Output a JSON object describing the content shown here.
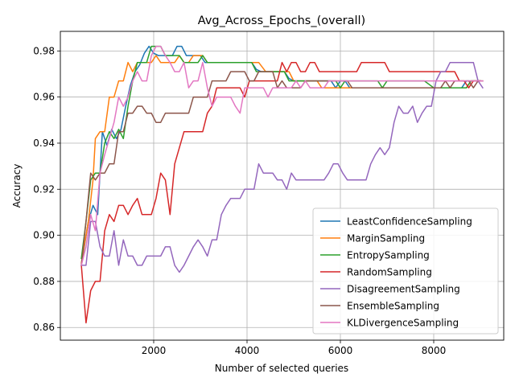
{
  "chart_data": {
    "type": "line",
    "title": "Avg_Across_Epochs_(overall)",
    "xlabel": "Number of selected queries",
    "ylabel": "Accuracy",
    "xlim": [
      0,
      9500
    ],
    "ylim": [
      0.8545,
      0.9885
    ],
    "xticks": [
      2000,
      4000,
      6000,
      8000
    ],
    "xtick_labels": [
      "2000",
      "4000",
      "6000",
      "8000"
    ],
    "yticks": [
      0.86,
      0.88,
      0.9,
      0.92,
      0.94,
      0.96,
      0.98
    ],
    "ytick_labels": [
      "0.86",
      "0.88",
      "0.90",
      "0.92",
      "0.94",
      "0.96",
      "0.98"
    ],
    "grid": true,
    "legend_position": "lower-right",
    "series": [
      {
        "name": "LeastConfidenceSampling",
        "color": "#1f77b4",
        "x": [
          450,
          600,
          700,
          800,
          900,
          1000,
          1100,
          1200,
          1300,
          1400,
          1500,
          1600,
          1700,
          1800,
          1900,
          2000,
          2100,
          2200,
          2300,
          2400,
          2500,
          2600,
          2700,
          2800,
          2900,
          3000,
          3100,
          3200,
          3300,
          3500,
          3700,
          3900,
          4100,
          4200,
          4300,
          4500,
          4700,
          4800,
          4900,
          5000,
          5200,
          5400,
          5600,
          5800,
          5900,
          6000,
          6100,
          6200,
          6400,
          6600,
          6800,
          7000,
          7200,
          7400,
          7600,
          7800,
          8000,
          8200,
          8400,
          8500,
          8600,
          8700,
          8800,
          9000
        ],
        "values": [
          0.887,
          0.906,
          0.913,
          0.909,
          0.945,
          0.939,
          0.946,
          0.942,
          0.946,
          0.956,
          0.965,
          0.971,
          0.974,
          0.979,
          0.982,
          0.979,
          0.978,
          0.978,
          0.978,
          0.978,
          0.982,
          0.982,
          0.978,
          0.978,
          0.978,
          0.978,
          0.975,
          0.975,
          0.975,
          0.975,
          0.975,
          0.975,
          0.975,
          0.972,
          0.971,
          0.971,
          0.971,
          0.971,
          0.968,
          0.967,
          0.967,
          0.967,
          0.967,
          0.967,
          0.964,
          0.967,
          0.967,
          0.964,
          0.964,
          0.964,
          0.964,
          0.964,
          0.964,
          0.964,
          0.964,
          0.964,
          0.964,
          0.964,
          0.964,
          0.964,
          0.964,
          0.967,
          0.967,
          0.967
        ]
      },
      {
        "name": "MarginSampling",
        "color": "#ff7f0e",
        "x": [
          450,
          600,
          700,
          750,
          850,
          950,
          1050,
          1150,
          1250,
          1350,
          1450,
          1550,
          1650,
          1750,
          1850,
          1950,
          2050,
          2150,
          2250,
          2350,
          2450,
          2550,
          2650,
          2750,
          2850,
          2950,
          3050,
          3150,
          3300,
          3500,
          3700,
          3900,
          4100,
          4250,
          4400,
          4600,
          4800,
          4900,
          5000,
          5200,
          5400,
          5500,
          5600,
          5800,
          6000,
          6200,
          6400,
          6600,
          6800,
          7000,
          7200,
          7400,
          7600,
          7800,
          8000,
          8200,
          8400,
          8600,
          8700,
          8800,
          9000
        ],
        "values": [
          0.888,
          0.906,
          0.924,
          0.942,
          0.945,
          0.945,
          0.96,
          0.96,
          0.967,
          0.967,
          0.975,
          0.971,
          0.975,
          0.975,
          0.975,
          0.975,
          0.978,
          0.975,
          0.975,
          0.975,
          0.975,
          0.978,
          0.975,
          0.975,
          0.978,
          0.978,
          0.978,
          0.975,
          0.975,
          0.975,
          0.975,
          0.975,
          0.975,
          0.975,
          0.971,
          0.971,
          0.971,
          0.971,
          0.967,
          0.967,
          0.967,
          0.967,
          0.964,
          0.964,
          0.964,
          0.964,
          0.964,
          0.964,
          0.964,
          0.964,
          0.964,
          0.964,
          0.964,
          0.964,
          0.964,
          0.964,
          0.964,
          0.964,
          0.964,
          0.967,
          0.967
        ]
      },
      {
        "name": "EntropySampling",
        "color": "#2ca02c",
        "x": [
          450,
          550,
          650,
          750,
          850,
          950,
          1050,
          1150,
          1250,
          1350,
          1450,
          1550,
          1650,
          1750,
          1850,
          1950,
          2050,
          2150,
          2250,
          2350,
          2450,
          2550,
          2650,
          2750,
          2850,
          2950,
          3050,
          3150,
          3300,
          3500,
          3700,
          3900,
          4100,
          4200,
          4300,
          4500,
          4700,
          4800,
          4900,
          5000,
          5200,
          5400,
          5600,
          5800,
          5900,
          6000,
          6100,
          6200,
          6400,
          6600,
          6800,
          6900,
          7000,
          7200,
          7400,
          7600,
          7800,
          8000,
          8200,
          8400,
          8600,
          8700,
          8800,
          9000
        ],
        "values": [
          0.89,
          0.906,
          0.924,
          0.927,
          0.927,
          0.94,
          0.945,
          0.942,
          0.946,
          0.942,
          0.956,
          0.967,
          0.975,
          0.975,
          0.975,
          0.982,
          0.982,
          0.982,
          0.978,
          0.978,
          0.978,
          0.978,
          0.975,
          0.975,
          0.975,
          0.975,
          0.978,
          0.975,
          0.975,
          0.975,
          0.975,
          0.975,
          0.975,
          0.971,
          0.971,
          0.971,
          0.971,
          0.971,
          0.967,
          0.967,
          0.967,
          0.967,
          0.967,
          0.967,
          0.967,
          0.964,
          0.967,
          0.967,
          0.967,
          0.967,
          0.967,
          0.964,
          0.967,
          0.967,
          0.967,
          0.967,
          0.967,
          0.964,
          0.964,
          0.964,
          0.964,
          0.964,
          0.967,
          0.967
        ]
      },
      {
        "name": "RandomSampling",
        "color": "#d62728",
        "x": [
          450,
          550,
          650,
          750,
          850,
          950,
          1050,
          1150,
          1250,
          1350,
          1450,
          1550,
          1650,
          1750,
          1850,
          1950,
          2050,
          2150,
          2250,
          2350,
          2450,
          2550,
          2650,
          2750,
          2850,
          2950,
          3050,
          3150,
          3250,
          3350,
          3450,
          3550,
          3650,
          3750,
          3850,
          3950,
          4050,
          4150,
          4250,
          4350,
          4450,
          4550,
          4650,
          4750,
          4850,
          4950,
          5050,
          5150,
          5250,
          5350,
          5450,
          5550,
          5650,
          5750,
          5850,
          5950,
          6050,
          6150,
          6250,
          6350,
          6450,
          6550,
          6650,
          6750,
          6850,
          6950,
          7050,
          7150,
          7250,
          7350,
          7450,
          7550,
          7650,
          7750,
          7850,
          7950,
          8050,
          8150,
          8250,
          8350,
          8450,
          8550,
          8650,
          8750,
          8850,
          9000
        ],
        "values": [
          0.887,
          0.862,
          0.876,
          0.88,
          0.88,
          0.902,
          0.909,
          0.906,
          0.913,
          0.913,
          0.909,
          0.913,
          0.916,
          0.909,
          0.909,
          0.909,
          0.916,
          0.927,
          0.924,
          0.909,
          0.931,
          0.938,
          0.945,
          0.945,
          0.945,
          0.945,
          0.945,
          0.953,
          0.956,
          0.964,
          0.964,
          0.964,
          0.964,
          0.964,
          0.964,
          0.96,
          0.967,
          0.967,
          0.967,
          0.967,
          0.967,
          0.967,
          0.967,
          0.975,
          0.971,
          0.975,
          0.975,
          0.971,
          0.971,
          0.975,
          0.975,
          0.971,
          0.971,
          0.971,
          0.971,
          0.971,
          0.971,
          0.971,
          0.971,
          0.971,
          0.975,
          0.975,
          0.975,
          0.975,
          0.975,
          0.975,
          0.971,
          0.971,
          0.971,
          0.971,
          0.971,
          0.971,
          0.971,
          0.971,
          0.971,
          0.971,
          0.971,
          0.971,
          0.971,
          0.971,
          0.971,
          0.967,
          0.967,
          0.964,
          0.967,
          0.967
        ]
      },
      {
        "name": "DisagreementSampling",
        "color": "#9467bd",
        "x": [
          450,
          550,
          650,
          750,
          850,
          950,
          1050,
          1150,
          1250,
          1350,
          1450,
          1550,
          1650,
          1750,
          1850,
          1950,
          2050,
          2150,
          2250,
          2350,
          2450,
          2550,
          2650,
          2750,
          2850,
          2950,
          3050,
          3150,
          3250,
          3350,
          3450,
          3550,
          3650,
          3750,
          3850,
          3950,
          4050,
          4150,
          4250,
          4350,
          4450,
          4550,
          4650,
          4750,
          4850,
          4950,
          5050,
          5150,
          5250,
          5350,
          5450,
          5550,
          5650,
          5750,
          5850,
          5950,
          6050,
          6150,
          6250,
          6350,
          6450,
          6550,
          6650,
          6750,
          6850,
          6950,
          7050,
          7150,
          7250,
          7350,
          7450,
          7550,
          7650,
          7750,
          7850,
          7950,
          8050,
          8150,
          8250,
          8350,
          8450,
          8550,
          8650,
          8750,
          8850,
          8950,
          9050
        ],
        "values": [
          0.887,
          0.887,
          0.906,
          0.906,
          0.895,
          0.891,
          0.891,
          0.902,
          0.887,
          0.898,
          0.891,
          0.891,
          0.887,
          0.887,
          0.891,
          0.891,
          0.891,
          0.891,
          0.895,
          0.895,
          0.887,
          0.884,
          0.887,
          0.891,
          0.895,
          0.898,
          0.895,
          0.891,
          0.898,
          0.898,
          0.909,
          0.913,
          0.916,
          0.916,
          0.916,
          0.92,
          0.92,
          0.92,
          0.931,
          0.927,
          0.927,
          0.927,
          0.924,
          0.924,
          0.92,
          0.927,
          0.924,
          0.924,
          0.924,
          0.924,
          0.924,
          0.924,
          0.924,
          0.927,
          0.931,
          0.931,
          0.927,
          0.924,
          0.924,
          0.924,
          0.924,
          0.924,
          0.931,
          0.935,
          0.938,
          0.935,
          0.938,
          0.949,
          0.956,
          0.953,
          0.953,
          0.956,
          0.949,
          0.953,
          0.956,
          0.956,
          0.967,
          0.971,
          0.971,
          0.975,
          0.975,
          0.975,
          0.975,
          0.975,
          0.975,
          0.967,
          0.964
        ]
      },
      {
        "name": "EnsembleSampling",
        "color": "#8c564b",
        "x": [
          450,
          550,
          650,
          750,
          850,
          950,
          1050,
          1150,
          1250,
          1350,
          1450,
          1550,
          1650,
          1750,
          1850,
          1950,
          2050,
          2150,
          2250,
          2350,
          2450,
          2550,
          2650,
          2750,
          2850,
          2950,
          3050,
          3150,
          3250,
          3350,
          3450,
          3550,
          3650,
          3750,
          3850,
          3950,
          4050,
          4150,
          4250,
          4350,
          4450,
          4550,
          4650,
          4750,
          4850,
          4950,
          5050,
          5150,
          5250,
          5350,
          5450,
          5550,
          5650,
          5750,
          5850,
          5950,
          6050,
          6150,
          6250,
          6350,
          6450,
          6550,
          6650,
          6750,
          6850,
          6950,
          7050,
          7150,
          7250,
          7350,
          7450,
          7550,
          7650,
          7750,
          7850,
          7950,
          8050,
          8150,
          8250,
          8350,
          8450,
          8550,
          8650,
          8750,
          8850,
          8950,
          9050
        ],
        "values": [
          0.887,
          0.906,
          0.927,
          0.924,
          0.927,
          0.927,
          0.931,
          0.931,
          0.945,
          0.945,
          0.953,
          0.953,
          0.956,
          0.956,
          0.953,
          0.953,
          0.949,
          0.949,
          0.953,
          0.953,
          0.953,
          0.953,
          0.953,
          0.953,
          0.96,
          0.96,
          0.96,
          0.96,
          0.967,
          0.967,
          0.967,
          0.967,
          0.971,
          0.971,
          0.971,
          0.971,
          0.967,
          0.967,
          0.971,
          0.971,
          0.971,
          0.971,
          0.964,
          0.967,
          0.964,
          0.964,
          0.964,
          0.964,
          0.967,
          0.967,
          0.967,
          0.967,
          0.967,
          0.967,
          0.967,
          0.967,
          0.967,
          0.967,
          0.964,
          0.964,
          0.964,
          0.964,
          0.964,
          0.964,
          0.964,
          0.964,
          0.964,
          0.964,
          0.964,
          0.964,
          0.964,
          0.964,
          0.964,
          0.964,
          0.964,
          0.964,
          0.964,
          0.964,
          0.967,
          0.964,
          0.967,
          0.967,
          0.967,
          0.967,
          0.964,
          0.967,
          0.967
        ]
      },
      {
        "name": "KLDivergenceSampling",
        "color": "#e377c2",
        "x": [
          450,
          550,
          650,
          750,
          850,
          950,
          1050,
          1150,
          1250,
          1350,
          1450,
          1550,
          1650,
          1750,
          1850,
          1950,
          2050,
          2150,
          2250,
          2350,
          2450,
          2550,
          2650,
          2750,
          2850,
          2950,
          3050,
          3150,
          3250,
          3350,
          3450,
          3550,
          3650,
          3750,
          3850,
          3950,
          4050,
          4150,
          4250,
          4350,
          4450,
          4550,
          4650,
          4750,
          4850,
          4950,
          5050,
          5150,
          5250,
          5350,
          5450,
          5550,
          5650,
          5750,
          5850,
          5950,
          6050,
          6150,
          6250,
          6350,
          6450,
          6550,
          6650,
          6750,
          6850,
          6950,
          7050,
          7150,
          7250,
          7350,
          7450,
          7550,
          7650,
          7750,
          7850,
          7950,
          8050,
          8150,
          8250,
          8350,
          8450,
          8550,
          8650,
          8750,
          8850,
          8950,
          9050
        ],
        "values": [
          0.887,
          0.895,
          0.909,
          0.902,
          0.927,
          0.935,
          0.942,
          0.949,
          0.96,
          0.956,
          0.96,
          0.967,
          0.971,
          0.967,
          0.967,
          0.978,
          0.982,
          0.982,
          0.978,
          0.975,
          0.971,
          0.971,
          0.975,
          0.964,
          0.967,
          0.967,
          0.975,
          0.964,
          0.956,
          0.96,
          0.96,
          0.96,
          0.96,
          0.956,
          0.953,
          0.964,
          0.964,
          0.964,
          0.964,
          0.964,
          0.96,
          0.964,
          0.964,
          0.964,
          0.964,
          0.964,
          0.967,
          0.964,
          0.967,
          0.964,
          0.964,
          0.964,
          0.964,
          0.967,
          0.967,
          0.967,
          0.967,
          0.967,
          0.967,
          0.967,
          0.967,
          0.967,
          0.967,
          0.967,
          0.967,
          0.967,
          0.967,
          0.967,
          0.967,
          0.967,
          0.967,
          0.967,
          0.967,
          0.967,
          0.967,
          0.967,
          0.967,
          0.967,
          0.967,
          0.967,
          0.967,
          0.967,
          0.967,
          0.967,
          0.967,
          0.967,
          0.967
        ]
      }
    ]
  }
}
